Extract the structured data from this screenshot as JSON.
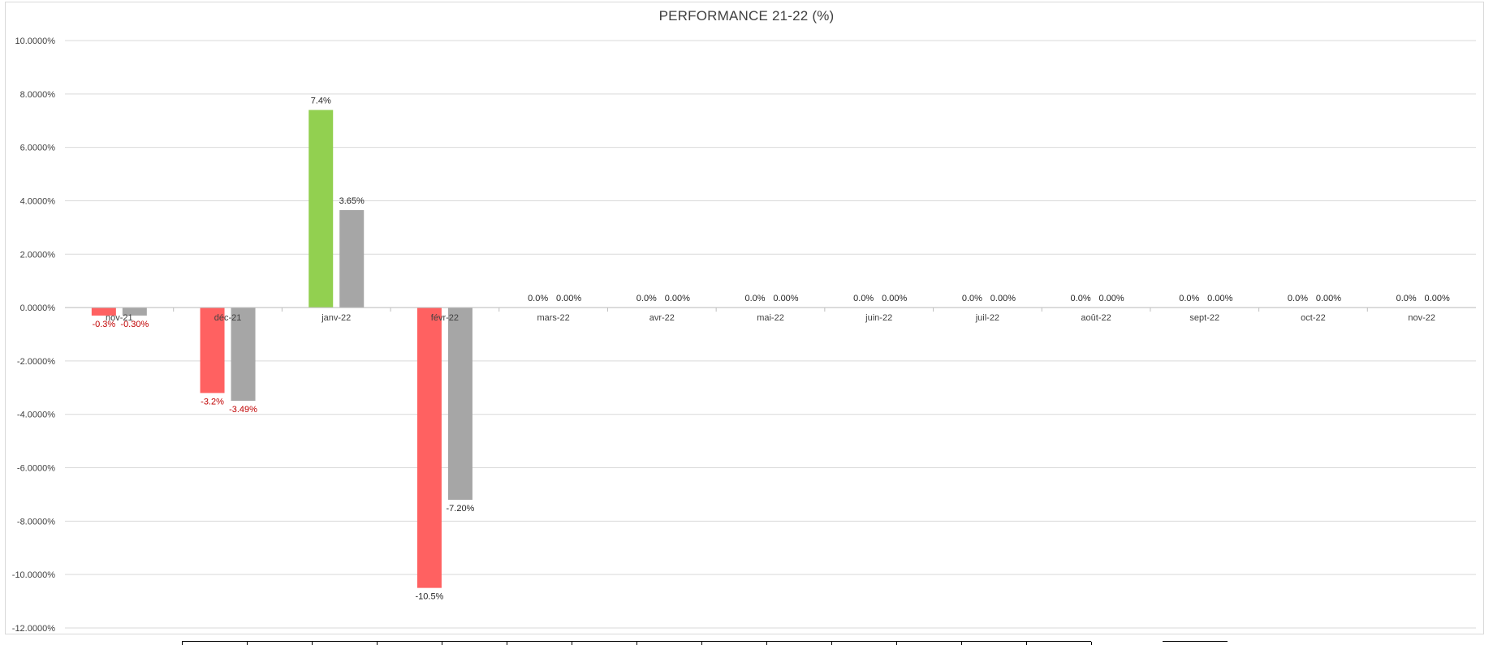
{
  "chart_data": {
    "type": "bar",
    "title": "PERFORMANCE 21-22 (%)",
    "xlabel": "",
    "ylabel": "",
    "ylim": [
      -12,
      10
    ],
    "y_ticks": [
      {
        "value": 10,
        "label": "10.0000%"
      },
      {
        "value": 8,
        "label": "8.0000%"
      },
      {
        "value": 6,
        "label": "6.0000%"
      },
      {
        "value": 4,
        "label": "4.0000%"
      },
      {
        "value": 2,
        "label": "2.0000%"
      },
      {
        "value": 0,
        "label": "0.0000%"
      },
      {
        "value": -2,
        "label": "-2.0000%"
      },
      {
        "value": -4,
        "label": "-4.0000%"
      },
      {
        "value": -6,
        "label": "-6.0000%"
      },
      {
        "value": -8,
        "label": "-8.0000%"
      },
      {
        "value": -10,
        "label": "-10.0000%"
      },
      {
        "value": -12,
        "label": "-12.0000%"
      }
    ],
    "grid": true,
    "legend": "none",
    "categories": [
      "nov-21",
      "déc-21",
      "janv-22",
      "févr-22",
      "mars-22",
      "avr-22",
      "mai-22",
      "juin-22",
      "juil-22",
      "août-22",
      "sept-22",
      "oct-22",
      "nov-22"
    ],
    "series": [
      {
        "values": [
          -0.3,
          -3.2,
          7.4,
          -10.5,
          0,
          0,
          0,
          0,
          0,
          0,
          0,
          0,
          0
        ],
        "labels": [
          "-0.3%",
          "-3.2%",
          "7.4%",
          "-10.5%",
          "0.0%",
          "0.0%",
          "0.0%",
          "0.0%",
          "0.0%",
          "0.0%",
          "0.0%",
          "0.0%",
          "0.0%"
        ],
        "color_positive": "#92d050",
        "color_negative": "#ff6161"
      },
      {
        "values": [
          -0.3,
          -3.49,
          3.65,
          -7.2,
          0,
          0,
          0,
          0,
          0,
          0,
          0,
          0,
          0
        ],
        "labels": [
          "-0.30%",
          "-3.49%",
          "3.65%",
          "-7.20%",
          "0.00%",
          "0.00%",
          "0.00%",
          "0.00%",
          "0.00%",
          "0.00%",
          "0.00%",
          "0.00%",
          "0.00%"
        ],
        "color": "#a6a6a6"
      }
    ],
    "label_colors": {
      "negative_small": "#c00000",
      "default": "#262626"
    }
  }
}
